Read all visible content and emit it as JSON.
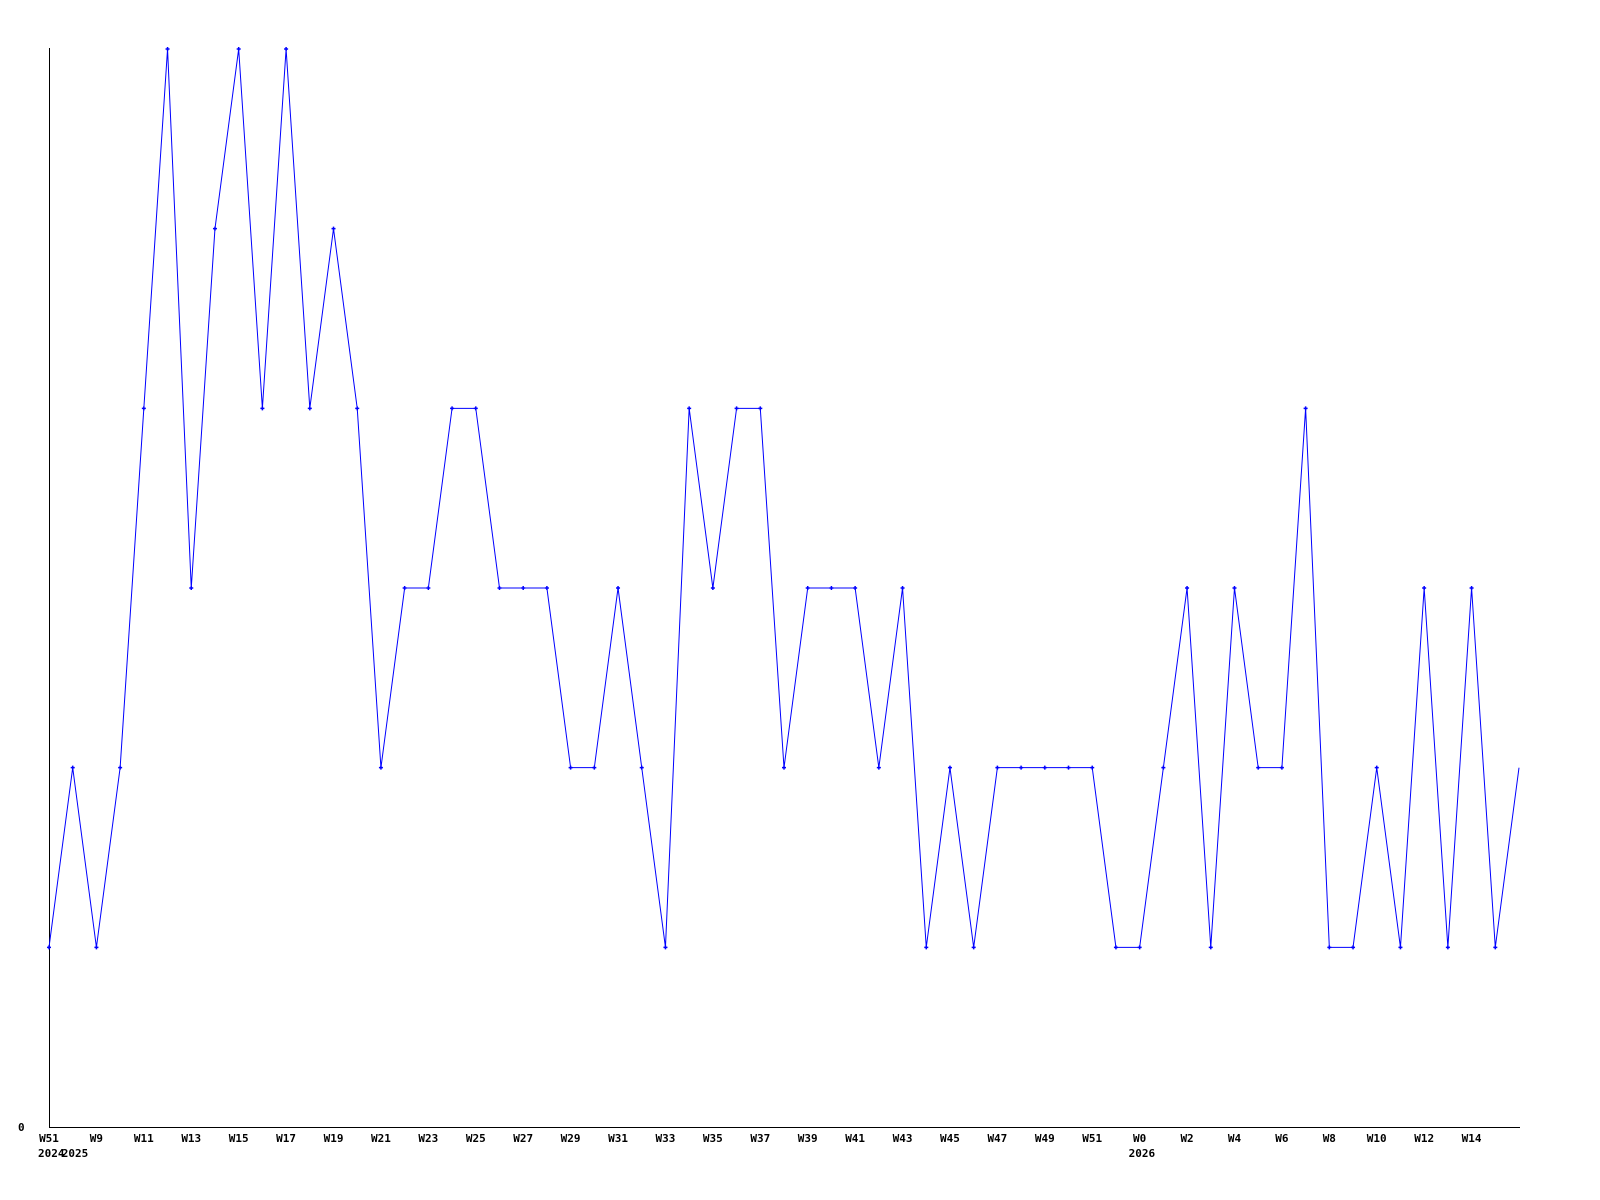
{
  "chart_data": {
    "type": "line",
    "title": "",
    "xlabel": "",
    "ylabel": "",
    "ylim": [
      0,
      6
    ],
    "grid": false,
    "y_tick_labels": [
      "0"
    ],
    "x_tick_labels": [
      "W51",
      "",
      "W9",
      "",
      "W11",
      "",
      "W13",
      "",
      "W15",
      "",
      "W17",
      "",
      "W19",
      "",
      "W21",
      "",
      "W23",
      "",
      "W25",
      "",
      "W27",
      "",
      "W29",
      "",
      "W31",
      "",
      "W33",
      "",
      "W35",
      "",
      "W37",
      "",
      "W39",
      "",
      "W41",
      "",
      "W43",
      "",
      "W45",
      "",
      "W47",
      "",
      "W49",
      "",
      "W51",
      "",
      "W0",
      "",
      "W2",
      "",
      "W4",
      "",
      "W6",
      "",
      "W8",
      "",
      "W10",
      "",
      "W12",
      "",
      "W14",
      "",
      ""
    ],
    "year_labels": [
      {
        "index": 0,
        "label": "2024"
      },
      {
        "index": 1,
        "label": "2025"
      },
      {
        "index": 46,
        "label": "2026"
      }
    ],
    "series": [
      {
        "color": "#0000ff",
        "values": [
          1,
          2,
          1,
          2,
          4,
          6,
          3,
          5,
          6,
          4,
          6,
          4,
          5,
          4,
          2,
          3,
          3,
          4,
          4,
          3,
          3,
          3,
          2,
          2,
          3,
          2,
          1,
          4,
          3,
          4,
          4,
          2,
          3,
          3,
          3,
          2,
          3,
          1,
          2,
          1,
          2,
          2,
          2,
          2,
          2,
          1,
          1,
          2,
          3,
          1,
          3,
          2,
          2,
          4,
          1,
          1,
          2,
          1,
          3,
          1,
          3,
          1,
          2
        ]
      }
    ]
  }
}
